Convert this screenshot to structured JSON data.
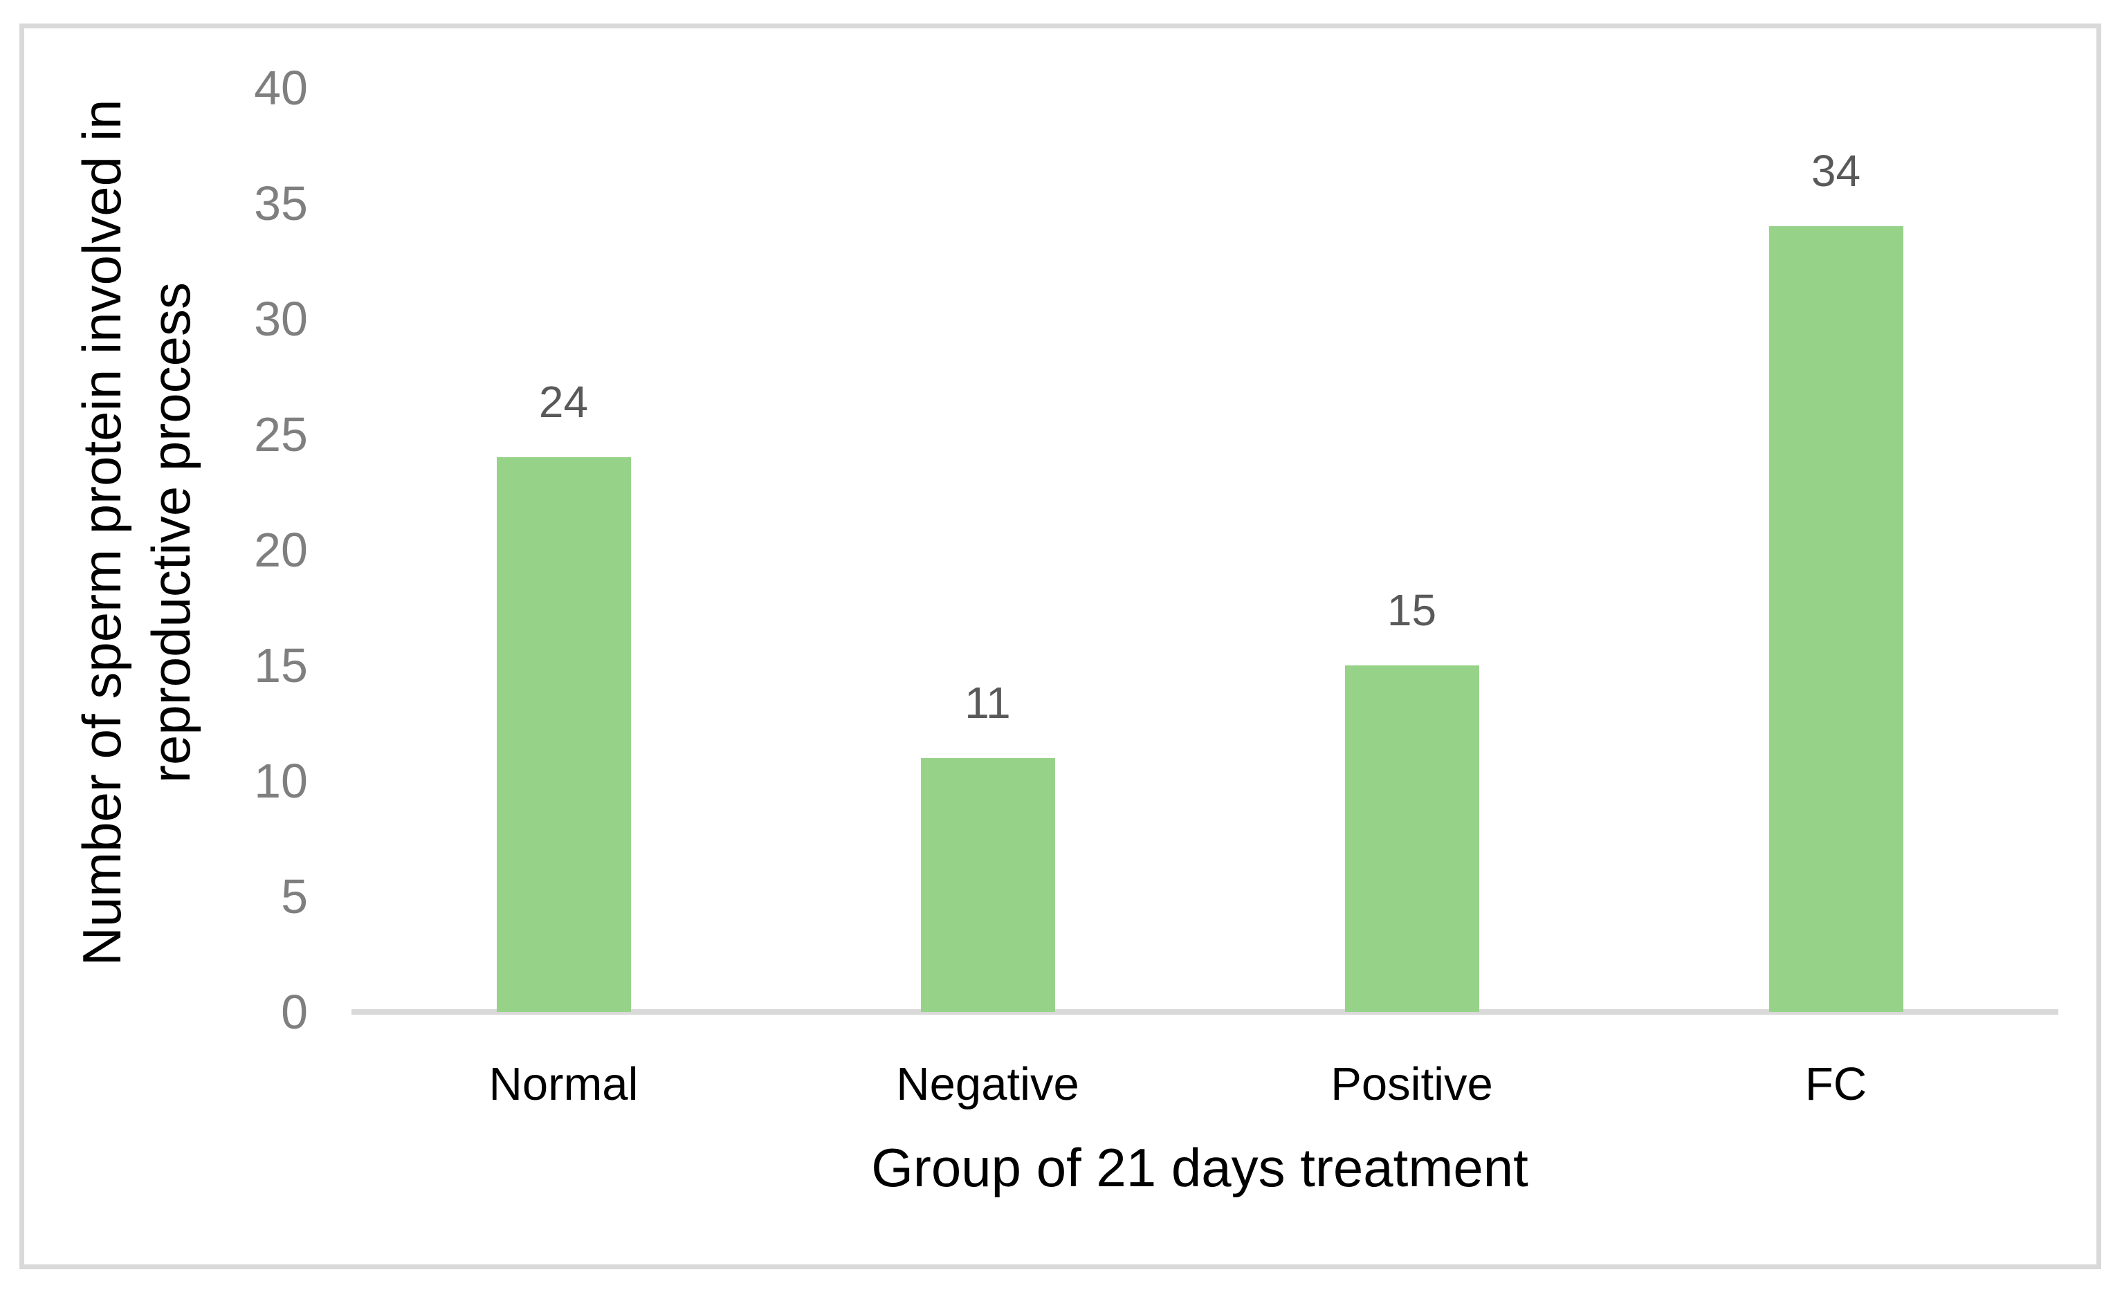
{
  "chart_data": {
    "type": "bar",
    "categories": [
      "Normal",
      "Negative",
      "Positive",
      "FC"
    ],
    "values": [
      24,
      11,
      15,
      34
    ],
    "xlabel": "Group of 21 days treatment",
    "ylabel": "Number of sperm protein involved in reproductive process",
    "ylabel_lines": [
      "Number of sperm protein involved in",
      "reproductive process"
    ],
    "ylim": [
      0,
      40
    ],
    "yticks": [
      0,
      5,
      10,
      15,
      20,
      25,
      30,
      35,
      40
    ],
    "grid": false,
    "legend": false,
    "colors": {
      "bar_fill": "#97D289",
      "axis_line": "#D9D9D9",
      "frame_border": "#D9D9D9",
      "tick_label": "#7F7F7F",
      "data_label": "#595959",
      "title_text": "#000000",
      "background": "#FFFFFF"
    }
  }
}
